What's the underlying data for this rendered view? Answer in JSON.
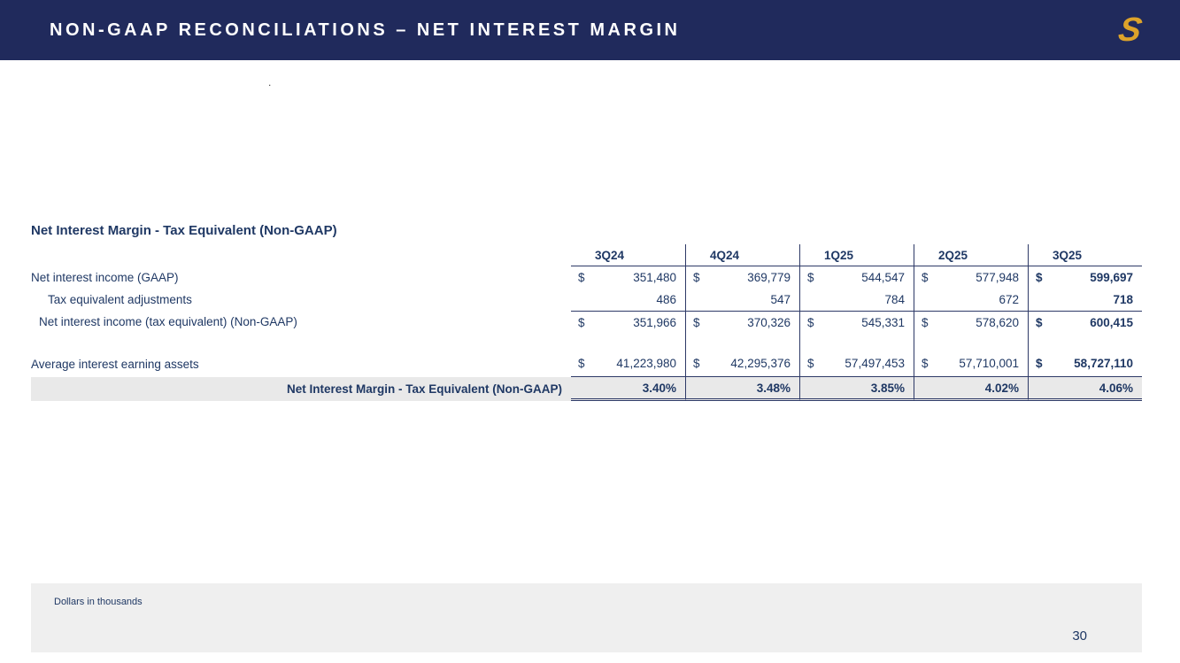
{
  "slide": {
    "header_title": "NON-GAAP RECONCILIATIONS – NET INTEREST MARGIN",
    "logo_letter": "S",
    "stray_mark": ".",
    "footnote": "Dollars in thousands",
    "page_number": "30"
  },
  "table": {
    "title": "Net Interest Margin - Tax Equivalent (Non-GAAP)",
    "currency": "$",
    "columns": [
      "3Q24",
      "4Q24",
      "1Q25",
      "2Q25",
      "3Q25"
    ],
    "rows": [
      {
        "label": "Net interest income (GAAP)",
        "values": [
          "351,480",
          "369,779",
          "544,547",
          "577,948",
          "599,697"
        ]
      },
      {
        "label": "Tax equivalent adjustments",
        "values": [
          "486",
          "547",
          "784",
          "672",
          "718"
        ]
      },
      {
        "label": "Net interest income (tax equivalent) (Non-GAAP)",
        "values": [
          "351,966",
          "370,326",
          "545,331",
          "578,620",
          "600,415"
        ]
      },
      {
        "label": "Average interest earning assets",
        "values": [
          "41,223,980",
          "42,295,376",
          "57,497,453",
          "57,710,001",
          "58,727,110"
        ]
      }
    ],
    "summary": {
      "label": "Net Interest Margin - Tax Equivalent (Non-GAAP)",
      "values": [
        "3.40%",
        "3.48%",
        "3.85%",
        "4.02%",
        "4.06%"
      ]
    }
  },
  "colors": {
    "header_navy": "#202a5c",
    "logo_gold": "#dda32a",
    "text_blue": "#1f3864",
    "summary_row_bg": "#e9e9e9",
    "footer_bg": "#efefef"
  }
}
